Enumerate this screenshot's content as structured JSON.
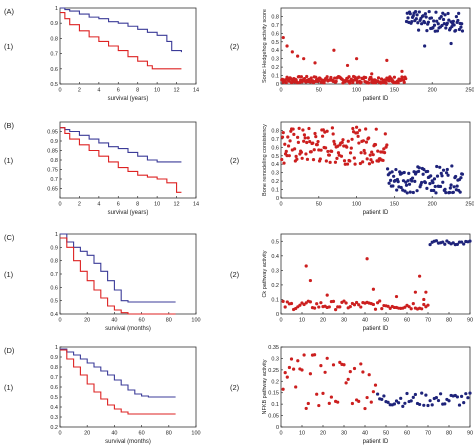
{
  "chart_data": [
    {
      "id": "A1",
      "type": "line",
      "row_label": "(A)",
      "panel_label": "(1)",
      "xlabel": "survival (years)",
      "ylabel": "",
      "xlim": [
        0,
        14
      ],
      "ylim": [
        0.5,
        1
      ],
      "xticks": [
        "0",
        "2",
        "4",
        "6",
        "8",
        "10",
        "12",
        "14"
      ],
      "yticks": [
        "0.5",
        "0.6",
        "0.7",
        "0.8",
        "0.9",
        "1"
      ],
      "series": [
        {
          "color": "#3b3b98",
          "x": [
            0,
            0.5,
            1,
            2,
            3,
            4,
            5,
            6,
            7,
            8,
            9,
            10,
            11,
            11.5,
            12.5
          ],
          "y": [
            1,
            0.99,
            0.98,
            0.96,
            0.94,
            0.93,
            0.91,
            0.9,
            0.88,
            0.86,
            0.84,
            0.82,
            0.78,
            0.72,
            0.71
          ]
        },
        {
          "color": "#dd2222",
          "x": [
            0,
            0.5,
            1,
            2,
            3,
            4,
            5,
            6,
            7,
            8,
            9,
            9.5,
            10,
            12.5
          ],
          "y": [
            0.97,
            0.93,
            0.89,
            0.85,
            0.81,
            0.78,
            0.75,
            0.72,
            0.68,
            0.65,
            0.62,
            0.6,
            0.6,
            0.6
          ]
        }
      ]
    },
    {
      "id": "A2",
      "type": "scatter",
      "panel_label": "(2)",
      "xlabel": "patient ID",
      "ylabel": "Sonic Hedgehog activity score",
      "xlim": [
        0,
        250
      ],
      "ylim": [
        0,
        0.9
      ],
      "xticks": [
        "0",
        "50",
        "100",
        "150",
        "200",
        "250"
      ],
      "yticks": [
        "0",
        "0.1",
        "0.2",
        "0.3",
        "0.4",
        "0.5",
        "0.6",
        "0.7",
        "0.8"
      ],
      "series": [
        {
          "color": "#cc1f1f",
          "n": 165,
          "x_range": [
            1,
            165
          ],
          "y_base": 0.01,
          "y_spread": 0.08,
          "outliers": [
            [
              3,
              0.55
            ],
            [
              8,
              0.45
            ],
            [
              15,
              0.38
            ],
            [
              22,
              0.33
            ],
            [
              30,
              0.3
            ],
            [
              45,
              0.25
            ],
            [
              70,
              0.4
            ],
            [
              88,
              0.22
            ],
            [
              100,
              0.3
            ],
            [
              120,
              0.12
            ],
            [
              140,
              0.28
            ],
            [
              160,
              0.15
            ]
          ]
        },
        {
          "color": "#1e237a",
          "n": 75,
          "x_range": [
            166,
            240
          ],
          "y_base": 0.74,
          "y_spread": 0.12,
          "outliers": [
            [
              190,
              0.45
            ],
            [
              225,
              0.48
            ]
          ]
        }
      ]
    },
    {
      "id": "B1",
      "type": "line",
      "row_label": "(B)",
      "panel_label": "(1)",
      "xlabel": "survival (years)",
      "ylabel": "",
      "xlim": [
        0,
        14
      ],
      "ylim": [
        0.6,
        1
      ],
      "xticks": [
        "0",
        "2",
        "4",
        "6",
        "8",
        "10",
        "12",
        "14"
      ],
      "yticks": [
        "0.65",
        "0.7",
        "0.75",
        "0.8",
        "0.85",
        "0.9",
        "0.95"
      ],
      "series": [
        {
          "color": "#3b3b98",
          "x": [
            0,
            0.5,
            1,
            2,
            3,
            4,
            5,
            6,
            7,
            8,
            9,
            10,
            12.5
          ],
          "y": [
            0.97,
            0.96,
            0.95,
            0.93,
            0.91,
            0.89,
            0.87,
            0.86,
            0.84,
            0.82,
            0.8,
            0.79,
            0.79
          ]
        },
        {
          "color": "#dd2222",
          "x": [
            0,
            0.5,
            1,
            2,
            3,
            4,
            5,
            6,
            7,
            8,
            9,
            10,
            11,
            12,
            12.5
          ],
          "y": [
            0.97,
            0.94,
            0.91,
            0.88,
            0.85,
            0.82,
            0.79,
            0.76,
            0.74,
            0.72,
            0.71,
            0.7,
            0.68,
            0.63,
            0.63
          ]
        }
      ]
    },
    {
      "id": "B2",
      "type": "scatter",
      "panel_label": "(2)",
      "xlabel": "patient ID",
      "ylabel": "Bone remodeling consistency",
      "xlim": [
        0,
        250
      ],
      "ylim": [
        0,
        0.9
      ],
      "xticks": [
        "0",
        "50",
        "100",
        "150",
        "200",
        "250"
      ],
      "yticks": [
        "0",
        "0.1",
        "0.2",
        "0.3",
        "0.4",
        "0.5",
        "0.6",
        "0.7",
        "0.8"
      ],
      "series": [
        {
          "color": "#cc1f1f",
          "n": 140,
          "x_range": [
            1,
            140
          ],
          "y_base": 0.62,
          "y_spread": 0.22,
          "outliers": []
        },
        {
          "color": "#1e237a",
          "n": 100,
          "x_range": [
            141,
            240
          ],
          "y_base": 0.22,
          "y_spread": 0.16,
          "outliers": []
        }
      ]
    },
    {
      "id": "C1",
      "type": "line",
      "row_label": "(C)",
      "panel_label": "(1)",
      "xlabel": "survival (months)",
      "ylabel": "",
      "xlim": [
        0,
        100
      ],
      "ylim": [
        0.4,
        1
      ],
      "xticks": [
        "0",
        "20",
        "40",
        "60",
        "80",
        "100"
      ],
      "yticks": [
        "0.4",
        "0.5",
        "0.6",
        "0.7",
        "0.8",
        "0.9",
        "1"
      ],
      "series": [
        {
          "color": "#3b3b98",
          "x": [
            0,
            5,
            10,
            15,
            20,
            25,
            30,
            35,
            40,
            45,
            50,
            85
          ],
          "y": [
            1,
            0.94,
            0.9,
            0.87,
            0.84,
            0.78,
            0.72,
            0.65,
            0.58,
            0.5,
            0.49,
            0.49
          ]
        },
        {
          "color": "#dd2222",
          "x": [
            0,
            5,
            10,
            15,
            20,
            25,
            30,
            35,
            40,
            45,
            50,
            85
          ],
          "y": [
            0.97,
            0.9,
            0.8,
            0.72,
            0.65,
            0.58,
            0.52,
            0.46,
            0.43,
            0.41,
            0.4,
            0.4
          ]
        }
      ]
    },
    {
      "id": "C2",
      "type": "scatter",
      "panel_label": "(2)",
      "xlabel": "patient ID",
      "ylabel": "Ck pathway activity",
      "xlim": [
        0,
        90
      ],
      "ylim": [
        0,
        0.55
      ],
      "xticks": [
        "0",
        "10",
        "20",
        "30",
        "40",
        "50",
        "60",
        "70",
        "80",
        "90"
      ],
      "yticks": [
        "0",
        "0.1",
        "0.2",
        "0.3",
        "0.4",
        "0.5"
      ],
      "series": [
        {
          "color": "#cc1f1f",
          "n": 70,
          "x_range": [
            1,
            70
          ],
          "y_base": 0.03,
          "y_spread": 0.06,
          "outliers": [
            [
              12,
              0.33
            ],
            [
              14,
              0.23
            ],
            [
              22,
              0.13
            ],
            [
              41,
              0.38
            ],
            [
              44,
              0.17
            ],
            [
              55,
              0.12
            ],
            [
              64,
              0.15
            ],
            [
              66,
              0.26
            ],
            [
              68,
              0.1
            ],
            [
              69,
              0.15
            ]
          ]
        },
        {
          "color": "#1e237a",
          "n": 20,
          "x_range": [
            71,
            90
          ],
          "y_base": 0.49,
          "y_spread": 0.015,
          "outliers": []
        }
      ]
    },
    {
      "id": "D1",
      "type": "line",
      "row_label": "(D)",
      "panel_label": "(1)",
      "xlabel": "survival (months)",
      "ylabel": "",
      "xlim": [
        0,
        100
      ],
      "ylim": [
        0.2,
        1
      ],
      "xticks": [
        "0",
        "20",
        "40",
        "60",
        "80",
        "100"
      ],
      "yticks": [
        "0.2",
        "0.3",
        "0.4",
        "0.5",
        "0.6",
        "0.7",
        "0.8",
        "0.9",
        "1"
      ],
      "series": [
        {
          "color": "#3b3b98",
          "x": [
            0,
            5,
            10,
            15,
            20,
            25,
            30,
            35,
            40,
            45,
            50,
            55,
            60,
            65,
            85
          ],
          "y": [
            0.98,
            0.95,
            0.92,
            0.88,
            0.84,
            0.8,
            0.76,
            0.72,
            0.67,
            0.62,
            0.57,
            0.53,
            0.51,
            0.5,
            0.5
          ]
        },
        {
          "color": "#dd2222",
          "x": [
            0,
            5,
            10,
            15,
            20,
            25,
            30,
            35,
            40,
            45,
            50,
            85
          ],
          "y": [
            0.97,
            0.88,
            0.8,
            0.72,
            0.63,
            0.55,
            0.48,
            0.42,
            0.38,
            0.35,
            0.33,
            0.33
          ]
        }
      ]
    },
    {
      "id": "D2",
      "type": "scatter",
      "panel_label": "(2)",
      "xlabel": "patient ID",
      "ylabel": "NFKB pathway activity",
      "xlim": [
        0,
        90
      ],
      "ylim": [
        0,
        0.35
      ],
      "xticks": [
        "0",
        "10",
        "20",
        "30",
        "40",
        "50",
        "60",
        "70",
        "80",
        "90"
      ],
      "yticks": [
        "0",
        "0.05",
        "0.1",
        "0.15",
        "0.2",
        "0.25",
        "0.3",
        "0.35"
      ],
      "series": [
        {
          "color": "#cc1f1f",
          "n": 45,
          "x_range": [
            1,
            45
          ],
          "y_base": 0.2,
          "y_spread": 0.12,
          "outliers": []
        },
        {
          "color": "#1e237a",
          "n": 45,
          "x_range": [
            46,
            90
          ],
          "y_base": 0.12,
          "y_spread": 0.03,
          "outliers": []
        }
      ]
    }
  ]
}
